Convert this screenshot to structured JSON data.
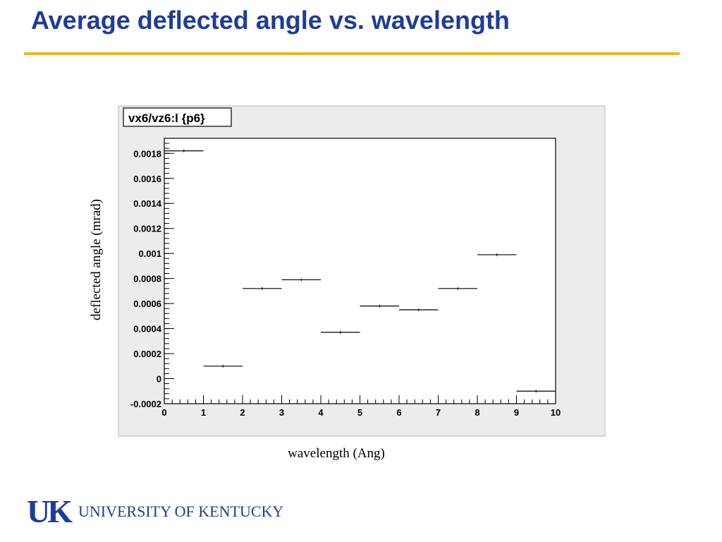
{
  "slide": {
    "title": "Average deflected angle vs. wavelength",
    "accent_color": "#f2b70f",
    "title_color": "#1f3c99"
  },
  "chart_data": {
    "type": "bar",
    "style": "step-histogram",
    "title": "vx6/vz6:l {p6}",
    "xlabel": "wavelength (Ang)",
    "ylabel": "deflected angle (mrad)",
    "x_bin_edges": [
      0,
      1,
      2,
      3,
      4,
      5,
      6,
      7,
      8,
      9,
      10
    ],
    "values": [
      0.00182,
      0.0001,
      0.00072,
      0.00079,
      0.00037,
      0.00058,
      0.00055,
      0.00072,
      0.00099,
      -0.0001
    ],
    "xlim": [
      0,
      10
    ],
    "ylim": [
      -0.0002,
      0.00192
    ],
    "x_ticks": [
      0,
      1,
      2,
      3,
      4,
      5,
      6,
      7,
      8,
      9,
      10
    ],
    "x_tick_labels": [
      "0",
      "1",
      "2",
      "3",
      "4",
      "5",
      "6",
      "7",
      "8",
      "9",
      "10"
    ],
    "y_ticks": [
      -0.0002,
      0,
      0.0002,
      0.0004,
      0.0006,
      0.0008,
      0.001,
      0.0012,
      0.0014,
      0.0016,
      0.0018
    ],
    "y_tick_labels": [
      "-0.0002",
      "0",
      "0.0002",
      "0.0004",
      "0.0006",
      "0.0008",
      "0.001",
      "0.0012",
      "0.0014",
      "0.0016",
      "0.0018"
    ],
    "grid": false,
    "legend": "none"
  },
  "footer": {
    "logo_mark": "UK",
    "university": "UNIVERSITY OF KENTUCKY"
  }
}
